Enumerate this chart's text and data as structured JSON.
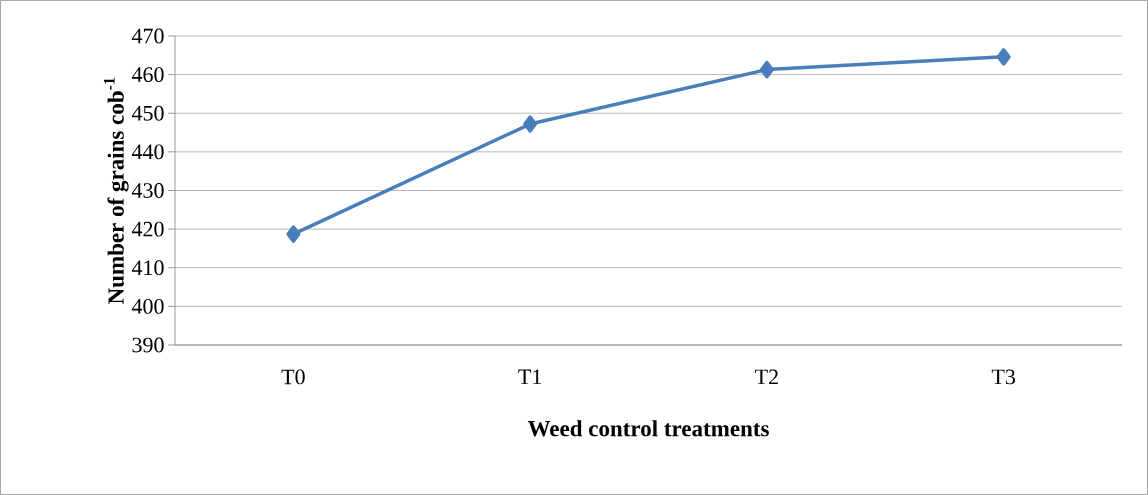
{
  "chart_data": {
    "type": "line",
    "xlabel": "Weed control treatments",
    "ylabel": "Number of grains cob$^{-1}$",
    "categories": [
      "T0",
      "T1",
      "T2",
      "T3"
    ],
    "series": [
      {
        "color": "#4a7ebb",
        "values": [
          418.7,
          447.2,
          461.3,
          464.6
        ]
      }
    ],
    "ylim": [
      390,
      470
    ],
    "yticks": [
      390,
      400,
      410,
      420,
      430,
      440,
      450,
      460,
      470
    ],
    "grid": "y",
    "marker": "diamond",
    "line_style": "solid"
  }
}
